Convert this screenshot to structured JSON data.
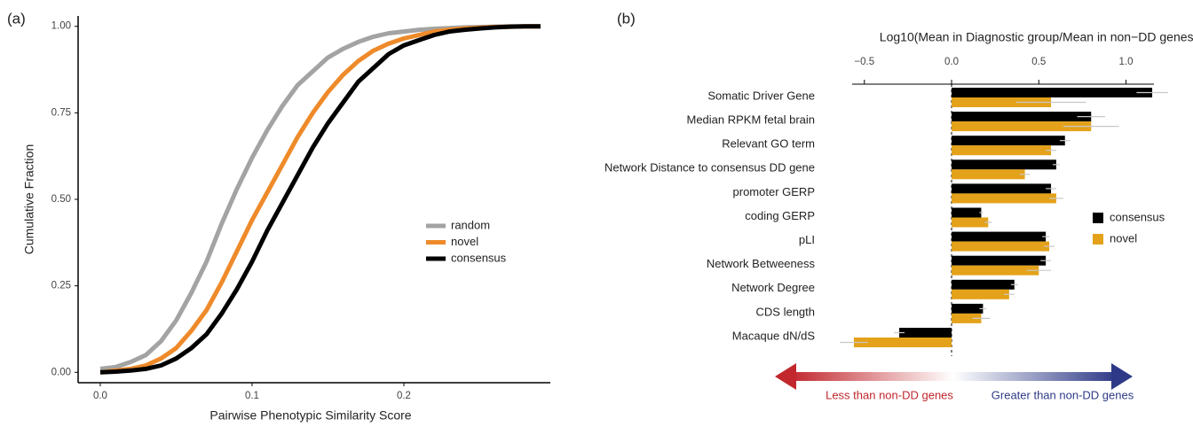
{
  "chart_data": [
    {
      "type": "line",
      "panel_label": "(a)",
      "x_label": "Pairwise Phenotypic Similarity Score",
      "y_label": "Cumulative Fraction",
      "x": [
        0,
        0.01,
        0.02,
        0.03,
        0.04,
        0.05,
        0.06,
        0.07,
        0.08,
        0.09,
        0.1,
        0.11,
        0.12,
        0.13,
        0.14,
        0.15,
        0.16,
        0.17,
        0.18,
        0.19,
        0.2,
        0.21,
        0.22,
        0.23,
        0.24,
        0.25,
        0.26,
        0.27,
        0.28,
        0.29
      ],
      "series": [
        {
          "name": "random",
          "color": "#a3a3a3",
          "values": [
            0.01,
            0.015,
            0.03,
            0.05,
            0.09,
            0.15,
            0.23,
            0.32,
            0.43,
            0.53,
            0.62,
            0.7,
            0.77,
            0.83,
            0.87,
            0.91,
            0.935,
            0.955,
            0.97,
            0.98,
            0.985,
            0.99,
            0.993,
            0.995,
            0.997,
            0.998,
            0.999,
            1,
            1,
            1
          ]
        },
        {
          "name": "novel",
          "color": "#ee8a2a",
          "values": [
            0,
            0.005,
            0.01,
            0.02,
            0.04,
            0.07,
            0.12,
            0.18,
            0.26,
            0.35,
            0.44,
            0.52,
            0.6,
            0.68,
            0.75,
            0.81,
            0.86,
            0.9,
            0.93,
            0.95,
            0.965,
            0.975,
            0.985,
            0.99,
            0.994,
            0.996,
            0.998,
            0.999,
            1,
            1
          ]
        },
        {
          "name": "consensus",
          "color": "#000000",
          "values": [
            0,
            0.002,
            0.005,
            0.01,
            0.02,
            0.04,
            0.07,
            0.11,
            0.17,
            0.24,
            0.32,
            0.41,
            0.49,
            0.57,
            0.65,
            0.72,
            0.78,
            0.84,
            0.88,
            0.92,
            0.945,
            0.96,
            0.975,
            0.985,
            0.99,
            0.994,
            0.997,
            0.999,
            1,
            1
          ]
        }
      ],
      "xlim": [
        -0.0146,
        0.2965
      ],
      "ylim": [
        -0.03,
        1.03
      ],
      "xticks": [
        {
          "value": 0,
          "label": "0.0"
        },
        {
          "value": 0.1,
          "label": "0.1"
        },
        {
          "value": 0.2,
          "label": "0.2"
        }
      ],
      "yticks": [
        {
          "value": 0,
          "label": "0.00"
        },
        {
          "value": 0.25,
          "label": "0.25"
        },
        {
          "value": 0.5,
          "label": "0.50"
        },
        {
          "value": 0.75,
          "label": "0.75"
        },
        {
          "value": 1,
          "label": "1.00"
        }
      ],
      "legend": "right"
    },
    {
      "type": "hbar",
      "panel_label": "(b)",
      "x_label": "Log10(Mean in Diagnostic group/Mean in non−DD genes)",
      "categories": [
        "Somatic Driver Gene",
        "Median RPKM fetal brain",
        "Relevant GO term",
        "Network Distance to consensus DD gene",
        "promoter GERP",
        "coding GERP",
        "pLI",
        "Network Betweeness",
        "Network Degree",
        "CDS length",
        "Macaque dN/dS"
      ],
      "series": [
        {
          "name": "consensus",
          "color": "#000000",
          "values": [
            1.15,
            0.8,
            0.65,
            0.6,
            0.57,
            0.17,
            0.54,
            0.54,
            0.36,
            0.18,
            -0.3
          ],
          "errors": [
            0.09,
            0.08,
            0.03,
            0.02,
            0.03,
            0.01,
            0.02,
            0.03,
            0.02,
            0.02,
            0.03
          ]
        },
        {
          "name": "novel",
          "color": "#e3a21a",
          "values": [
            0.57,
            0.8,
            0.57,
            0.42,
            0.6,
            0.21,
            0.56,
            0.5,
            0.33,
            0.17,
            -0.56
          ],
          "errors": [
            0.2,
            0.16,
            0.03,
            0.03,
            0.04,
            0.02,
            0.03,
            0.07,
            0.03,
            0.05,
            0.08
          ]
        }
      ],
      "xlim": [
        -0.57,
        1.16
      ],
      "xticks": [
        {
          "value": -0.5,
          "label": "−0.5"
        },
        {
          "value": 0,
          "label": "0.0"
        },
        {
          "value": 0.5,
          "label": "0.5"
        },
        {
          "value": 1,
          "label": "1.0"
        }
      ],
      "legend": "right",
      "annotations": [
        "Less than non-DD genes",
        "Greater than non-DD genes"
      ]
    }
  ]
}
